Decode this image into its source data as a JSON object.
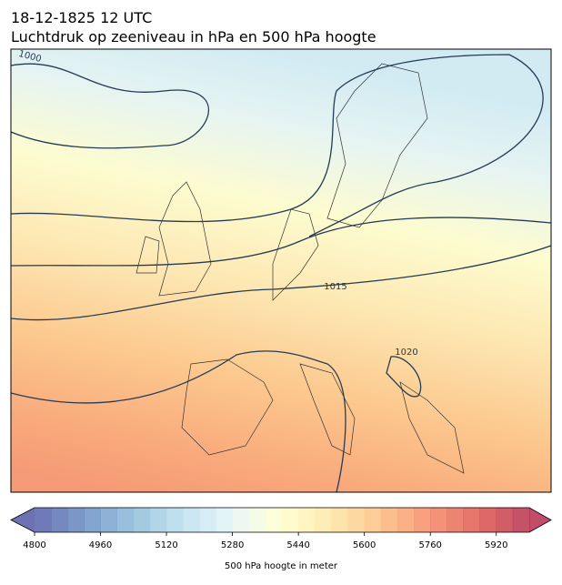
{
  "header": {
    "line1": "18-12-1825 12 UTC",
    "line2": "Luchtdruk op zeeniveau in hPa en 500 hPa hoogte"
  },
  "map": {
    "contour_labels": [
      "1000",
      "1015",
      "1020"
    ]
  },
  "colorbar": {
    "label": "500 hPa hoogte in meter",
    "lim": [
      4800,
      6000
    ],
    "levels": [
      4800,
      4840,
      4880,
      4920,
      4960,
      5000,
      5040,
      5080,
      5120,
      5160,
      5200,
      5240,
      5280,
      5320,
      5360,
      5400,
      5440,
      5480,
      5520,
      5560,
      5600,
      5640,
      5680,
      5720,
      5760,
      5800,
      5840,
      5880,
      5920,
      5960,
      6000
    ],
    "ticks": [
      4800,
      4960,
      5120,
      5280,
      5440,
      5600,
      5760,
      5920
    ],
    "cmap": [
      "#313695",
      "#4575b4",
      "#74add1",
      "#abd9e9",
      "#e0f3f8",
      "#ffffbf",
      "#fee090",
      "#fdae61",
      "#f46d43",
      "#d73027",
      "#a50026"
    ],
    "opacity": 0.7
  }
}
